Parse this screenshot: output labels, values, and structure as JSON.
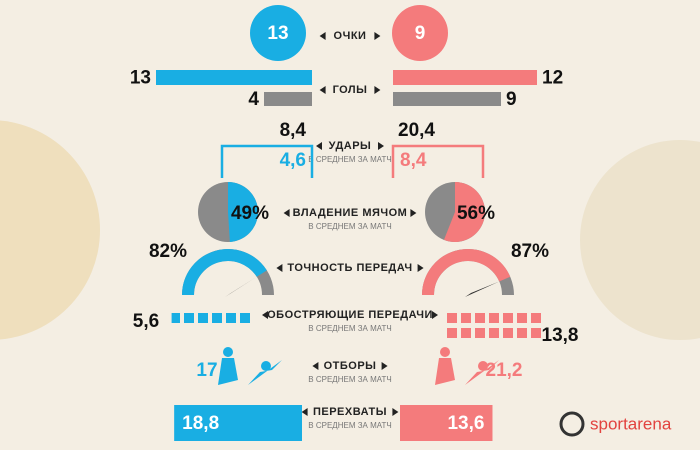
{
  "chart_data": {
    "type": "infographic",
    "colors": {
      "home": "#19aee3",
      "away": "#f47b7c",
      "secondary": "#8a8a8a"
    },
    "subtitle": "В СРЕДНЕМ ЗА МАТЧ",
    "points": {
      "label": "ОЧКИ",
      "home": 13,
      "away": 9
    },
    "goals": {
      "label": "ГОЛЫ",
      "home": [
        13,
        4
      ],
      "away": [
        12,
        9
      ]
    },
    "shots": {
      "label": "УДАРЫ",
      "home": [
        {
          "value": 8.4,
          "label": "8,4"
        },
        {
          "value": 4.6,
          "label": "4,6"
        }
      ],
      "away": [
        {
          "value": 20.4,
          "label": "20,4"
        },
        {
          "value": 8.4,
          "label": "8,4"
        }
      ]
    },
    "possession": {
      "label": "ВЛАДЕНИЕ МЯЧОМ",
      "home": {
        "value": 49,
        "label": "49%"
      },
      "away": {
        "value": 56,
        "label": "56%"
      }
    },
    "pass_accuracy": {
      "label": "ТОЧНОСТЬ ПЕРЕДАЧ",
      "home": {
        "value": 82,
        "label": "82%"
      },
      "away": {
        "value": 87,
        "label": "87%"
      }
    },
    "key_passes": {
      "label": "ОБОСТРЯЮЩИЕ ПЕРЕДАЧИ",
      "home": {
        "value": 5.6,
        "label": "5,6"
      },
      "away": {
        "value": 13.8,
        "label": "13,8"
      }
    },
    "tackles": {
      "label": "ОТБОРЫ",
      "home": 17,
      "away": {
        "value": 21.2,
        "label": "21,2"
      }
    },
    "interceptions": {
      "label": "ПЕРЕХВАТЫ",
      "home": {
        "value": 18.8,
        "label": "18,8"
      },
      "away": {
        "value": 13.6,
        "label": "13,6"
      }
    },
    "brand": "sportarena"
  }
}
